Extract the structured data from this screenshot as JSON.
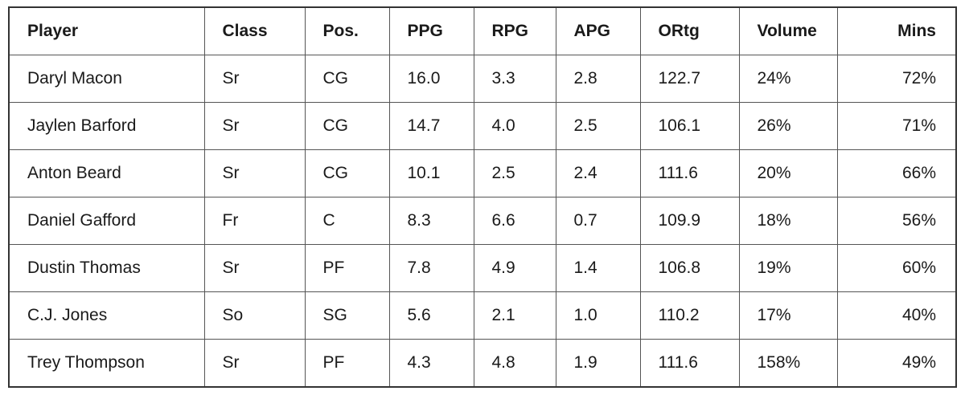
{
  "table": {
    "headers": [
      "Player",
      "Class",
      "Pos.",
      "PPG",
      "RPG",
      "APG",
      "ORtg",
      "Volume",
      "Mins"
    ],
    "rows": [
      [
        "Daryl Macon",
        "Sr",
        "CG",
        "16.0",
        "3.3",
        "2.8",
        "122.7",
        "24%",
        "72%"
      ],
      [
        "Jaylen Barford",
        "Sr",
        "CG",
        "14.7",
        "4.0",
        "2.5",
        "106.1",
        "26%",
        "71%"
      ],
      [
        "Anton Beard",
        "Sr",
        "CG",
        "10.1",
        "2.5",
        "2.4",
        "111.6",
        "20%",
        "66%"
      ],
      [
        "Daniel Gafford",
        "Fr",
        "C",
        "8.3",
        "6.6",
        "0.7",
        "109.9",
        "18%",
        "56%"
      ],
      [
        "Dustin Thomas",
        "Sr",
        "PF",
        "7.8",
        "4.9",
        "1.4",
        "106.8",
        "19%",
        "60%"
      ],
      [
        "C.J. Jones",
        "So",
        "SG",
        "5.6",
        "2.1",
        "1.0",
        "110.2",
        "17%",
        "40%"
      ],
      [
        "Trey Thompson",
        "Sr",
        "PF",
        "4.3",
        "4.8",
        "1.9",
        "111.6",
        "158%",
        "49%"
      ]
    ]
  }
}
